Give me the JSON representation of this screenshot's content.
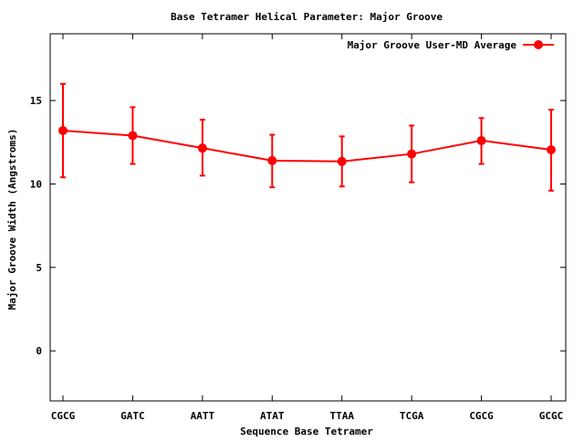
{
  "chart_data": {
    "type": "line",
    "title": "Base Tetramer Helical Parameter: Major Groove",
    "xlabel": "Sequence Base Tetramer",
    "ylabel": "Major Groove Width (Angstroms)",
    "categories": [
      "CGCG",
      "GATC",
      "AATT",
      "ATAT",
      "TTAA",
      "TCGA",
      "CGCG",
      "GCGC"
    ],
    "ylim": [
      -3,
      19
    ],
    "yticks": [
      0,
      5,
      10,
      15
    ],
    "grid": false,
    "legend_position": "top-right",
    "series": [
      {
        "name": "Major Groove User-MD Average",
        "color": "#ff0000",
        "values": [
          13.2,
          12.9,
          12.15,
          11.4,
          11.35,
          11.8,
          12.6,
          12.05
        ],
        "err_low": [
          10.4,
          11.2,
          10.5,
          9.8,
          9.85,
          10.1,
          11.2,
          9.6
        ],
        "err_high": [
          16.0,
          14.6,
          13.85,
          12.95,
          12.85,
          13.5,
          13.95,
          14.45
        ]
      }
    ]
  }
}
